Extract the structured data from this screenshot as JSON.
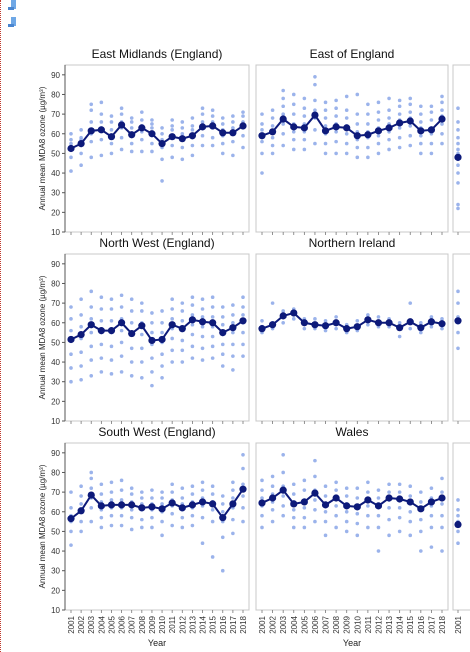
{
  "chart_data": {
    "type": "scatter-line",
    "x_title": "Year",
    "y_title": "Annual mean MDA8 ozone (µg/m³)",
    "years": [
      "2001",
      "2002",
      "2003",
      "2004",
      "2005",
      "2006",
      "2007",
      "2008",
      "2009",
      "2010",
      "2011",
      "2012",
      "2013",
      "2014",
      "2015",
      "2016",
      "2017",
      "2018"
    ],
    "ylim": [
      10,
      95
    ],
    "yticks": [
      10,
      20,
      30,
      40,
      50,
      60,
      70,
      80,
      90
    ],
    "grid": false,
    "colors": {
      "mean": "#0d1a7a",
      "sites": "#8aa6e8"
    },
    "panels": [
      {
        "title": "East Midlands (England)",
        "mean": [
          52.5,
          55,
          61.5,
          62,
          58.5,
          64.5,
          59.5,
          63,
          60,
          55,
          58.5,
          57.5,
          59,
          63.5,
          64,
          60.5,
          60.5,
          64
        ],
        "sites": [
          [
            41,
            48,
            52,
            55,
            57,
            60
          ],
          [
            44,
            50,
            54,
            57,
            58,
            62
          ],
          [
            48,
            56,
            60,
            66,
            72,
            75
          ],
          [
            49,
            57,
            63,
            66,
            70,
            76
          ],
          [
            50,
            55,
            58,
            62,
            66,
            69
          ],
          [
            52,
            58,
            63,
            66,
            70,
            73
          ],
          [
            51,
            55,
            59,
            63,
            66,
            68
          ],
          [
            51,
            57,
            61,
            64,
            67,
            71
          ],
          [
            51,
            55,
            60,
            63,
            65,
            67
          ],
          [
            36,
            47,
            53,
            57,
            60,
            63
          ],
          [
            48,
            54,
            58,
            62,
            64,
            67
          ],
          [
            47,
            53,
            57,
            60,
            63,
            66
          ],
          [
            49,
            54,
            58,
            62,
            64,
            68
          ],
          [
            54,
            59,
            63,
            66,
            70,
            73
          ],
          [
            54,
            58,
            63,
            66,
            69,
            72
          ],
          [
            50,
            55,
            59,
            62,
            65,
            68
          ],
          [
            49,
            56,
            60,
            63,
            66,
            69
          ],
          [
            53,
            59,
            63,
            66,
            69,
            71
          ]
        ]
      },
      {
        "title": "East of England",
        "mean": [
          59,
          61,
          67.5,
          63.5,
          63,
          69.5,
          61.5,
          63.5,
          63,
          59,
          59.5,
          61.5,
          63,
          65.5,
          66.5,
          61.5,
          62,
          67.5
        ],
        "sites": [
          [
            40,
            50,
            56,
            59,
            62,
            65,
            70
          ],
          [
            50,
            54,
            58,
            61,
            64,
            68,
            72
          ],
          [
            54,
            60,
            65,
            70,
            74,
            78,
            82
          ],
          [
            52,
            57,
            61,
            65,
            70,
            75,
            80
          ],
          [
            52,
            57,
            61,
            65,
            69,
            73,
            78
          ],
          [
            55,
            62,
            68,
            72,
            77,
            85,
            89
          ],
          [
            50,
            55,
            60,
            64,
            68,
            72,
            76
          ],
          [
            50,
            56,
            61,
            65,
            69,
            73,
            77
          ],
          [
            50,
            55,
            60,
            64,
            68,
            72,
            79
          ],
          [
            48,
            53,
            57,
            61,
            65,
            70,
            80
          ],
          [
            48,
            53,
            58,
            61,
            65,
            70,
            75
          ],
          [
            50,
            55,
            59,
            63,
            67,
            71,
            76
          ],
          [
            52,
            57,
            61,
            65,
            68,
            72,
            78
          ],
          [
            53,
            58,
            63,
            67,
            70,
            74,
            77
          ],
          [
            54,
            59,
            64,
            68,
            71,
            75,
            78
          ],
          [
            50,
            55,
            59,
            63,
            66,
            70,
            74
          ],
          [
            50,
            55,
            60,
            63,
            67,
            71,
            74
          ],
          [
            55,
            60,
            65,
            69,
            72,
            76,
            79
          ]
        ]
      },
      {
        "title": "North West (England)",
        "mean": [
          51.5,
          54,
          59,
          56,
          56,
          60,
          54.5,
          58.5,
          51,
          51.5,
          59,
          57,
          61.5,
          60.5,
          60,
          55,
          57.5,
          61
        ],
        "sites": [
          [
            30,
            37,
            44,
            51,
            56,
            62,
            68
          ],
          [
            31,
            38,
            45,
            52,
            58,
            64,
            72
          ],
          [
            33,
            41,
            48,
            55,
            62,
            68,
            76
          ],
          [
            35,
            42,
            49,
            55,
            61,
            67,
            73
          ],
          [
            34,
            41,
            48,
            55,
            61,
            67,
            72
          ],
          [
            35,
            43,
            50,
            56,
            62,
            68,
            74
          ],
          [
            33,
            40,
            47,
            54,
            60,
            66,
            72
          ],
          [
            32,
            40,
            47,
            54,
            60,
            66,
            70
          ],
          [
            28,
            35,
            42,
            49,
            55,
            60,
            65
          ],
          [
            32,
            38,
            44,
            50,
            55,
            60,
            66
          ],
          [
            40,
            46,
            52,
            57,
            62,
            67,
            72
          ],
          [
            40,
            46,
            51,
            56,
            61,
            66,
            70
          ],
          [
            42,
            48,
            54,
            59,
            64,
            69,
            73
          ],
          [
            41,
            47,
            53,
            58,
            63,
            67,
            72
          ],
          [
            42,
            48,
            53,
            58,
            63,
            68,
            73
          ],
          [
            38,
            44,
            49,
            54,
            59,
            63,
            68
          ],
          [
            36,
            43,
            49,
            55,
            60,
            64,
            69
          ],
          [
            43,
            49,
            55,
            60,
            64,
            68,
            73
          ]
        ]
      },
      {
        "title": "Northern Ireland",
        "mean": [
          57,
          59,
          63.5,
          65,
          60,
          59,
          58.5,
          60,
          57,
          58,
          61.5,
          60,
          60,
          57.5,
          60.5,
          57.5,
          60.5,
          59.5
        ],
        "sites": [
          [
            55,
            58,
            61
          ],
          [
            57,
            60,
            70
          ],
          [
            60,
            63,
            66
          ],
          [
            62,
            64,
            67
          ],
          [
            57,
            60,
            62
          ],
          [
            57,
            59,
            62
          ],
          [
            56,
            59,
            61
          ],
          [
            57,
            60,
            63
          ],
          [
            55,
            57,
            59
          ],
          [
            56,
            58,
            61
          ],
          [
            59,
            62,
            64
          ],
          [
            58,
            60,
            63
          ],
          [
            58,
            60,
            62
          ],
          [
            53,
            57,
            60
          ],
          [
            57,
            61,
            70
          ],
          [
            55,
            58,
            60
          ],
          [
            58,
            60,
            63
          ],
          [
            57,
            60,
            62
          ]
        ]
      },
      {
        "title": "South West (England)",
        "mean": [
          56.5,
          60.5,
          68.5,
          63,
          63.5,
          63.5,
          63.5,
          62,
          62.5,
          61.5,
          64.5,
          62,
          63.5,
          65,
          64,
          57,
          64,
          71.5
        ],
        "sites": [
          [
            43,
            50,
            55,
            58,
            62,
            70
          ],
          [
            50,
            55,
            60,
            64,
            68,
            73
          ],
          [
            55,
            62,
            67,
            72,
            77,
            80
          ],
          [
            52,
            57,
            61,
            65,
            69,
            74
          ],
          [
            53,
            58,
            62,
            66,
            70,
            75
          ],
          [
            53,
            58,
            62,
            66,
            71,
            76
          ],
          [
            51,
            57,
            61,
            65,
            69,
            72
          ],
          [
            52,
            56,
            61,
            64,
            67,
            70
          ],
          [
            52,
            57,
            61,
            64,
            67,
            71
          ],
          [
            48,
            55,
            60,
            64,
            67,
            70
          ],
          [
            53,
            59,
            63,
            66,
            70,
            74
          ],
          [
            52,
            57,
            61,
            64,
            67,
            72
          ],
          [
            53,
            58,
            62,
            65,
            69,
            73
          ],
          [
            44,
            57,
            63,
            67,
            71,
            75
          ],
          [
            37,
            55,
            61,
            65,
            69,
            73
          ],
          [
            30,
            47,
            55,
            60,
            64,
            68
          ],
          [
            49,
            56,
            62,
            67,
            71,
            75
          ],
          [
            55,
            62,
            68,
            74,
            82,
            89
          ]
        ]
      },
      {
        "title": "Wales",
        "mean": [
          64.5,
          67,
          71,
          64,
          65,
          69.5,
          63.5,
          67,
          63,
          62.5,
          66,
          63,
          67,
          66.5,
          65,
          61.5,
          65,
          67
        ],
        "sites": [
          [
            52,
            58,
            63,
            67,
            71,
            76
          ],
          [
            55,
            61,
            65,
            69,
            73,
            78
          ],
          [
            58,
            63,
            68,
            73,
            80,
            89
          ],
          [
            52,
            57,
            61,
            65,
            69,
            74
          ],
          [
            52,
            57,
            62,
            66,
            71,
            76
          ],
          [
            55,
            61,
            66,
            71,
            78,
            86
          ],
          [
            48,
            55,
            60,
            64,
            68,
            73
          ],
          [
            52,
            58,
            63,
            67,
            71,
            75
          ],
          [
            50,
            55,
            60,
            64,
            68,
            72
          ],
          [
            48,
            54,
            59,
            63,
            67,
            72
          ],
          [
            52,
            58,
            63,
            67,
            70,
            75
          ],
          [
            40,
            52,
            58,
            63,
            67,
            71
          ],
          [
            48,
            56,
            62,
            66,
            70,
            74
          ],
          [
            50,
            57,
            62,
            66,
            70,
            74
          ],
          [
            48,
            55,
            60,
            64,
            68,
            73
          ],
          [
            40,
            50,
            56,
            61,
            65,
            70
          ],
          [
            42,
            52,
            58,
            63,
            67,
            72
          ],
          [
            40,
            52,
            58,
            64,
            70,
            77
          ]
        ]
      }
    ],
    "right_strip": {
      "year": "2001",
      "rows": [
        {
          "mean": 48,
          "sites": [
            22,
            24,
            35,
            40,
            44,
            47,
            50,
            52,
            55,
            58,
            62,
            66,
            73
          ]
        },
        {
          "mean": 61,
          "sites": [
            47,
            55,
            60,
            63,
            70,
            76
          ]
        },
        {
          "mean": 53.5,
          "sites": [
            44,
            50,
            55,
            58,
            61,
            66
          ]
        }
      ]
    }
  },
  "icons": [
    "map-marker-icon",
    "map-marker-icon"
  ]
}
